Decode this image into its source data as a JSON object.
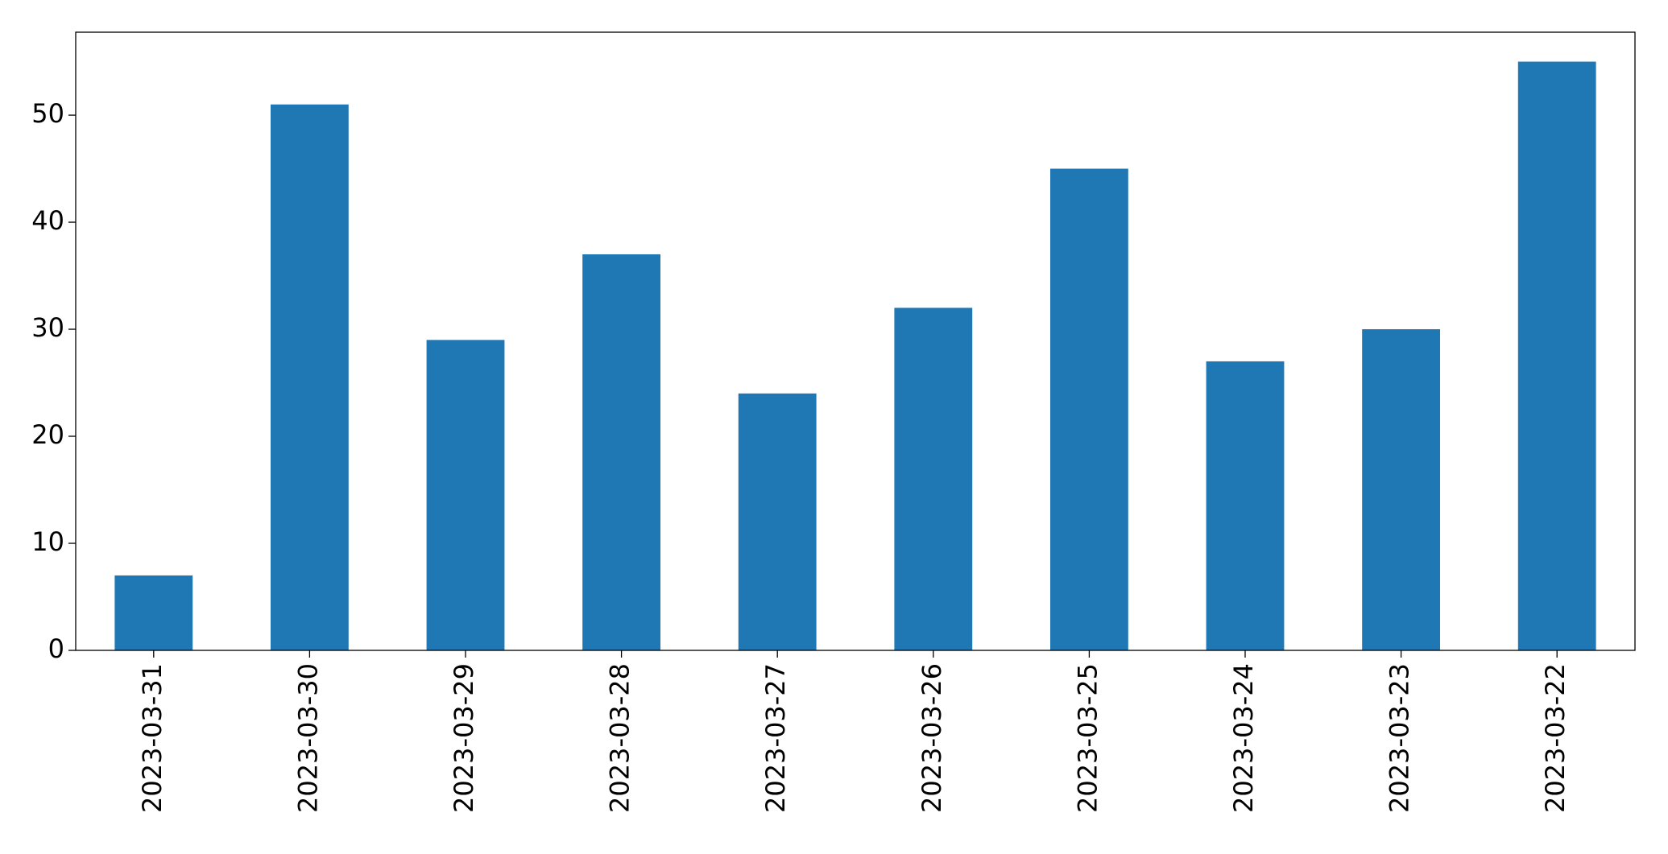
{
  "chart_data": {
    "type": "bar",
    "categories": [
      "2023-03-31",
      "2023-03-30",
      "2023-03-29",
      "2023-03-28",
      "2023-03-27",
      "2023-03-26",
      "2023-03-25",
      "2023-03-24",
      "2023-03-23",
      "2023-03-22"
    ],
    "values": [
      7,
      51,
      29,
      37,
      24,
      32,
      45,
      27,
      30,
      55
    ],
    "color": "#1f77b4",
    "ylim": [
      0,
      57.75
    ],
    "yticks": [
      0,
      10,
      20,
      30,
      40,
      50
    ],
    "grid": false
  }
}
